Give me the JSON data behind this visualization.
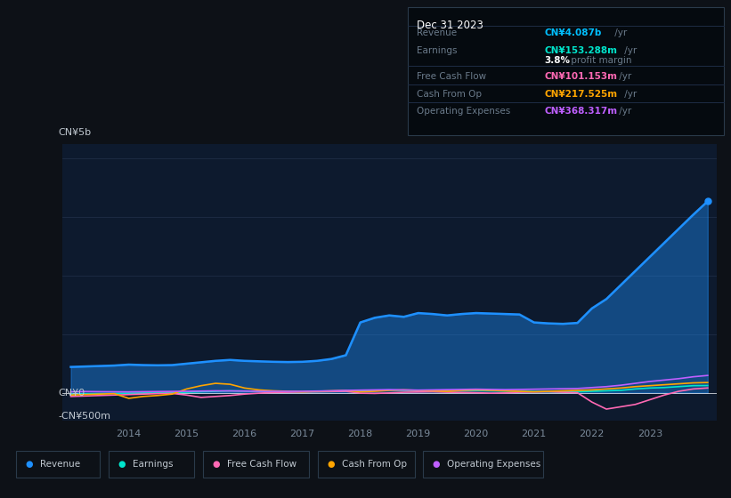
{
  "background_color": "#0d1117",
  "plot_bg_color": "#0d1a2e",
  "title_box": {
    "date": "Dec 31 2023",
    "revenue_label": "Revenue",
    "revenue_value": "CN¥4.087b",
    "revenue_color": "#00bfff",
    "earnings_label": "Earnings",
    "earnings_value": "CN¥153.288m",
    "earnings_color": "#00e5cc",
    "profit_margin": "3.8%",
    "profit_margin_label": " profit margin",
    "fcf_label": "Free Cash Flow",
    "fcf_value": "CN¥101.153m",
    "fcf_color": "#ff69b4",
    "cashop_label": "Cash From Op",
    "cashop_value": "CN¥217.525m",
    "cashop_color": "#ffa500",
    "opex_label": "Operating Expenses",
    "opex_value": "CN¥368.317m",
    "opex_color": "#bf5fff"
  },
  "ylabel_top": "CN¥5b",
  "ylabel_zero": "CN¥0",
  "ylabel_neg": "-CN¥500m",
  "ylim": [
    -600000000,
    5300000000
  ],
  "grid_color": "#1e2d45",
  "tick_color": "#7a8a9a",
  "text_color": "#c0c8d0",
  "dim_text_color": "#6a7a8a",
  "line_colors": {
    "revenue": "#1e90ff",
    "earnings": "#00e5cc",
    "fcf": "#ff69b4",
    "cashop": "#ffa500",
    "opex": "#bf5fff"
  },
  "legend": [
    {
      "label": "Revenue",
      "color": "#1e90ff"
    },
    {
      "label": "Earnings",
      "color": "#00e5cc"
    },
    {
      "label": "Free Cash Flow",
      "color": "#ff69b4"
    },
    {
      "label": "Cash From Op",
      "color": "#ffa500"
    },
    {
      "label": "Operating Expenses",
      "color": "#bf5fff"
    }
  ],
  "years": [
    2013.0,
    2013.25,
    2013.5,
    2013.75,
    2014.0,
    2014.25,
    2014.5,
    2014.75,
    2015.0,
    2015.25,
    2015.5,
    2015.75,
    2016.0,
    2016.25,
    2016.5,
    2016.75,
    2017.0,
    2017.25,
    2017.5,
    2017.75,
    2018.0,
    2018.25,
    2018.5,
    2018.75,
    2019.0,
    2019.25,
    2019.5,
    2019.75,
    2020.0,
    2020.25,
    2020.5,
    2020.75,
    2021.0,
    2021.25,
    2021.5,
    2021.75,
    2022.0,
    2022.25,
    2022.5,
    2022.75,
    2023.0,
    2023.25,
    2023.5,
    2023.75,
    2024.0
  ],
  "revenue": [
    550000000,
    560000000,
    570000000,
    580000000,
    600000000,
    590000000,
    585000000,
    590000000,
    620000000,
    650000000,
    680000000,
    700000000,
    680000000,
    670000000,
    660000000,
    655000000,
    660000000,
    680000000,
    720000000,
    800000000,
    1500000000,
    1600000000,
    1650000000,
    1620000000,
    1700000000,
    1680000000,
    1650000000,
    1680000000,
    1700000000,
    1690000000,
    1680000000,
    1670000000,
    1500000000,
    1480000000,
    1470000000,
    1490000000,
    1800000000,
    2000000000,
    2300000000,
    2600000000,
    2900000000,
    3200000000,
    3500000000,
    3800000000,
    4087000000
  ],
  "earnings": [
    -30000000,
    -25000000,
    -20000000,
    -15000000,
    -10000000,
    -5000000,
    0,
    5000000,
    10000000,
    20000000,
    30000000,
    40000000,
    35000000,
    30000000,
    25000000,
    20000000,
    15000000,
    20000000,
    25000000,
    30000000,
    40000000,
    50000000,
    55000000,
    50000000,
    45000000,
    40000000,
    35000000,
    40000000,
    45000000,
    40000000,
    35000000,
    30000000,
    25000000,
    20000000,
    15000000,
    20000000,
    30000000,
    40000000,
    50000000,
    80000000,
    100000000,
    110000000,
    130000000,
    150000000,
    153288000
  ],
  "fcf": [
    -80000000,
    -70000000,
    -60000000,
    -50000000,
    -40000000,
    -30000000,
    -20000000,
    -15000000,
    -50000000,
    -100000000,
    -80000000,
    -60000000,
    -30000000,
    -10000000,
    5000000,
    10000000,
    15000000,
    20000000,
    25000000,
    30000000,
    -10000000,
    -15000000,
    -5000000,
    10000000,
    15000000,
    20000000,
    10000000,
    5000000,
    0,
    -10000000,
    -5000000,
    10000000,
    15000000,
    20000000,
    10000000,
    0,
    -200000000,
    -350000000,
    -300000000,
    -250000000,
    -150000000,
    -50000000,
    30000000,
    80000000,
    101153000
  ],
  "cashop": [
    -50000000,
    -40000000,
    -30000000,
    -20000000,
    -120000000,
    -80000000,
    -60000000,
    -30000000,
    80000000,
    150000000,
    200000000,
    180000000,
    100000000,
    60000000,
    40000000,
    30000000,
    20000000,
    30000000,
    40000000,
    50000000,
    20000000,
    30000000,
    50000000,
    60000000,
    50000000,
    40000000,
    30000000,
    50000000,
    60000000,
    50000000,
    40000000,
    30000000,
    20000000,
    30000000,
    40000000,
    50000000,
    60000000,
    80000000,
    100000000,
    130000000,
    150000000,
    170000000,
    190000000,
    210000000,
    217525000
  ],
  "opex": [
    20000000,
    25000000,
    22000000,
    20000000,
    18000000,
    22000000,
    25000000,
    28000000,
    30000000,
    35000000,
    40000000,
    38000000,
    35000000,
    32000000,
    30000000,
    28000000,
    30000000,
    35000000,
    40000000,
    50000000,
    55000000,
    60000000,
    65000000,
    60000000,
    55000000,
    60000000,
    65000000,
    70000000,
    75000000,
    70000000,
    65000000,
    70000000,
    75000000,
    80000000,
    85000000,
    90000000,
    110000000,
    130000000,
    160000000,
    200000000,
    240000000,
    270000000,
    300000000,
    340000000,
    368317000
  ]
}
